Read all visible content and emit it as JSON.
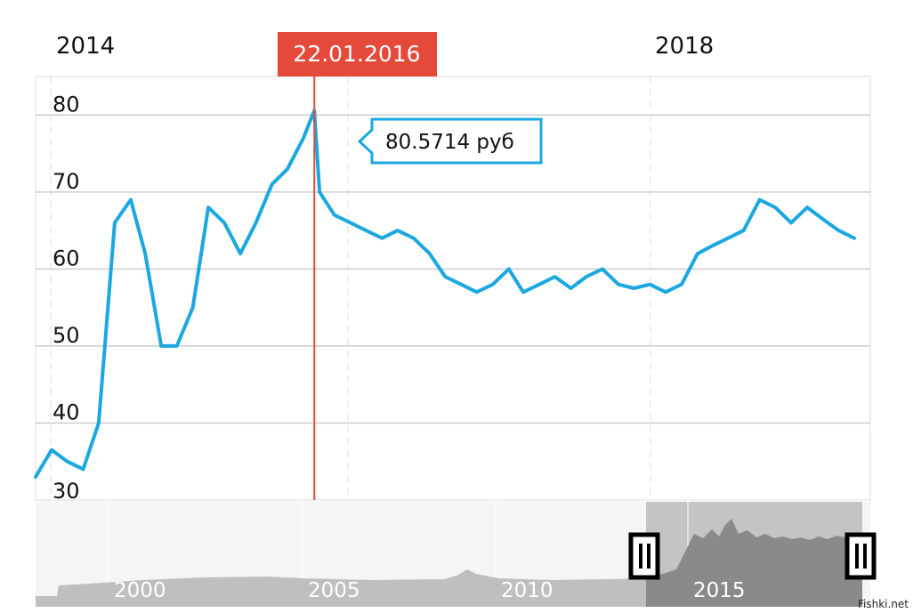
{
  "colors": {
    "line": "#1ba7e0",
    "marker": "#e5493a",
    "grid": "#cccccc",
    "vgrid": "#dddddd",
    "navigator_bg": "#f5f5f5",
    "navigator_area": "#bfbfbf",
    "navigator_selected_bg": "#c4c4c4",
    "navigator_selected_area": "#8a8a8a"
  },
  "top_axis_labels": [
    "2014",
    "2018"
  ],
  "marker": {
    "date_label": "22.01.2016",
    "tooltip": "80.5714 руб",
    "value": 80.5714
  },
  "navigator": {
    "year_labels": [
      "2000",
      "2005",
      "2010",
      "2015"
    ],
    "handle_icon": "navigator-handle-icon"
  },
  "watermark": "Fishki.net",
  "chart_data": {
    "type": "line",
    "ylim": [
      30,
      85
    ],
    "y_ticks": [
      30,
      40,
      50,
      60,
      70,
      80
    ],
    "x_range": [
      "2014-08",
      "2019-01"
    ],
    "x_ticks": [
      "2014",
      "2018"
    ],
    "series": [
      {
        "x": [
          "2014-08",
          "2014-09",
          "2014-10",
          "2014-11",
          "2014-12",
          "2015-01",
          "2015-02",
          "2015-03",
          "2015-04",
          "2015-05",
          "2015-06",
          "2015-07",
          "2015-08",
          "2015-09",
          "2015-10",
          "2015-11",
          "2015-12",
          "2016-01",
          "2016-01-22",
          "2016-02",
          "2016-03",
          "2016-04",
          "2016-05",
          "2016-06",
          "2016-07",
          "2016-08",
          "2016-09",
          "2016-10",
          "2016-11",
          "2016-12",
          "2017-01",
          "2017-02",
          "2017-03",
          "2017-04",
          "2017-05",
          "2017-06",
          "2017-07",
          "2017-08",
          "2017-09",
          "2017-10",
          "2017-11",
          "2017-12",
          "2018-01",
          "2018-02",
          "2018-03",
          "2018-04",
          "2018-05",
          "2018-06",
          "2018-07",
          "2018-08",
          "2018-09",
          "2018-10",
          "2018-11",
          "2018-12"
        ],
        "y": [
          33,
          36.5,
          35,
          34,
          40,
          66,
          69,
          62,
          50,
          50,
          55,
          68,
          66,
          62,
          66,
          71,
          73,
          77,
          80.57,
          70,
          67,
          66,
          65,
          64,
          65,
          64,
          62,
          59,
          58,
          57,
          58,
          60,
          57,
          58,
          59,
          57.5,
          59,
          60,
          58,
          57.5,
          58,
          57,
          58,
          62,
          63,
          64,
          65,
          69,
          68,
          66,
          68,
          66.5,
          65,
          64
        ]
      }
    ]
  }
}
